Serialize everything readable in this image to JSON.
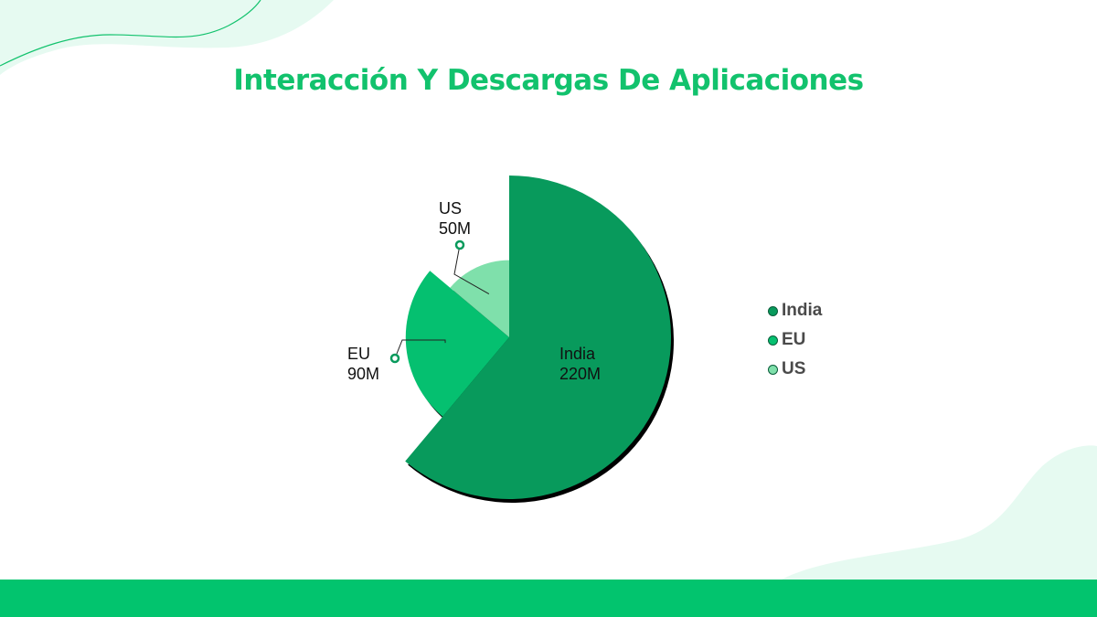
{
  "title": "Interacción Y Descargas De Aplicaciones",
  "colors": {
    "title": "#12c26d",
    "decoration": "#e6faf1",
    "bottom_bar": "#02c46e",
    "label_text": "#111111"
  },
  "chart_data": {
    "type": "pie",
    "variant": "rose",
    "title": "Interacción Y Descargas De Aplicaciones",
    "categories": [
      "India",
      "EU",
      "US"
    ],
    "values": [
      220,
      90,
      50
    ],
    "value_labels": [
      "220M",
      "90M",
      "50M"
    ],
    "colors": [
      "#089a5c",
      "#05c070",
      "#7fe0ab"
    ],
    "legend_position": "right",
    "grid": false
  }
}
